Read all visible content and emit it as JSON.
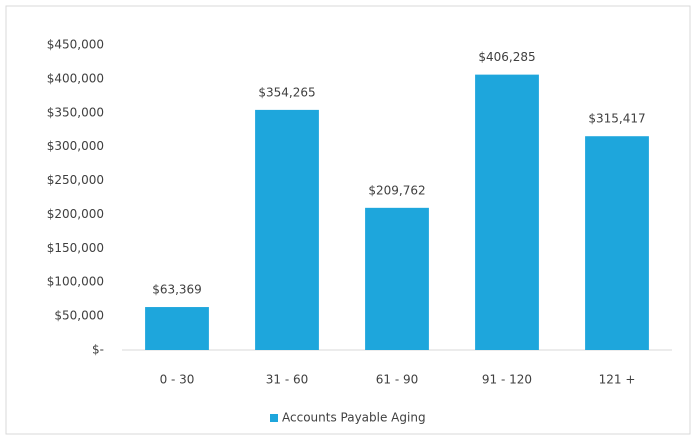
{
  "chart_data": {
    "type": "bar",
    "categories": [
      "0 - 30",
      "31 - 60",
      "61 - 90",
      "91 - 120",
      "121 +"
    ],
    "series": [
      {
        "name": "Accounts Payable Aging",
        "color": "#1ea6dc",
        "values": [
          63369,
          354265,
          209762,
          406285,
          315417
        ],
        "value_labels": [
          "$63,369",
          "$354,265",
          "$209,762",
          "$406,285",
          "$315,417"
        ]
      }
    ],
    "ylim": [
      0,
      450000
    ],
    "yticks": [
      {
        "value": 0,
        "label": "$-"
      },
      {
        "value": 50000,
        "label": "$50,000"
      },
      {
        "value": 100000,
        "label": "$100,000"
      },
      {
        "value": 150000,
        "label": "$150,000"
      },
      {
        "value": 200000,
        "label": "$200,000"
      },
      {
        "value": 250000,
        "label": "$250,000"
      },
      {
        "value": 300000,
        "label": "$300,000"
      },
      {
        "value": 350000,
        "label": "$350,000"
      },
      {
        "value": 400000,
        "label": "$400,000"
      },
      {
        "value": 450000,
        "label": "$450,000"
      }
    ],
    "grid": false,
    "legend": "bottom"
  }
}
